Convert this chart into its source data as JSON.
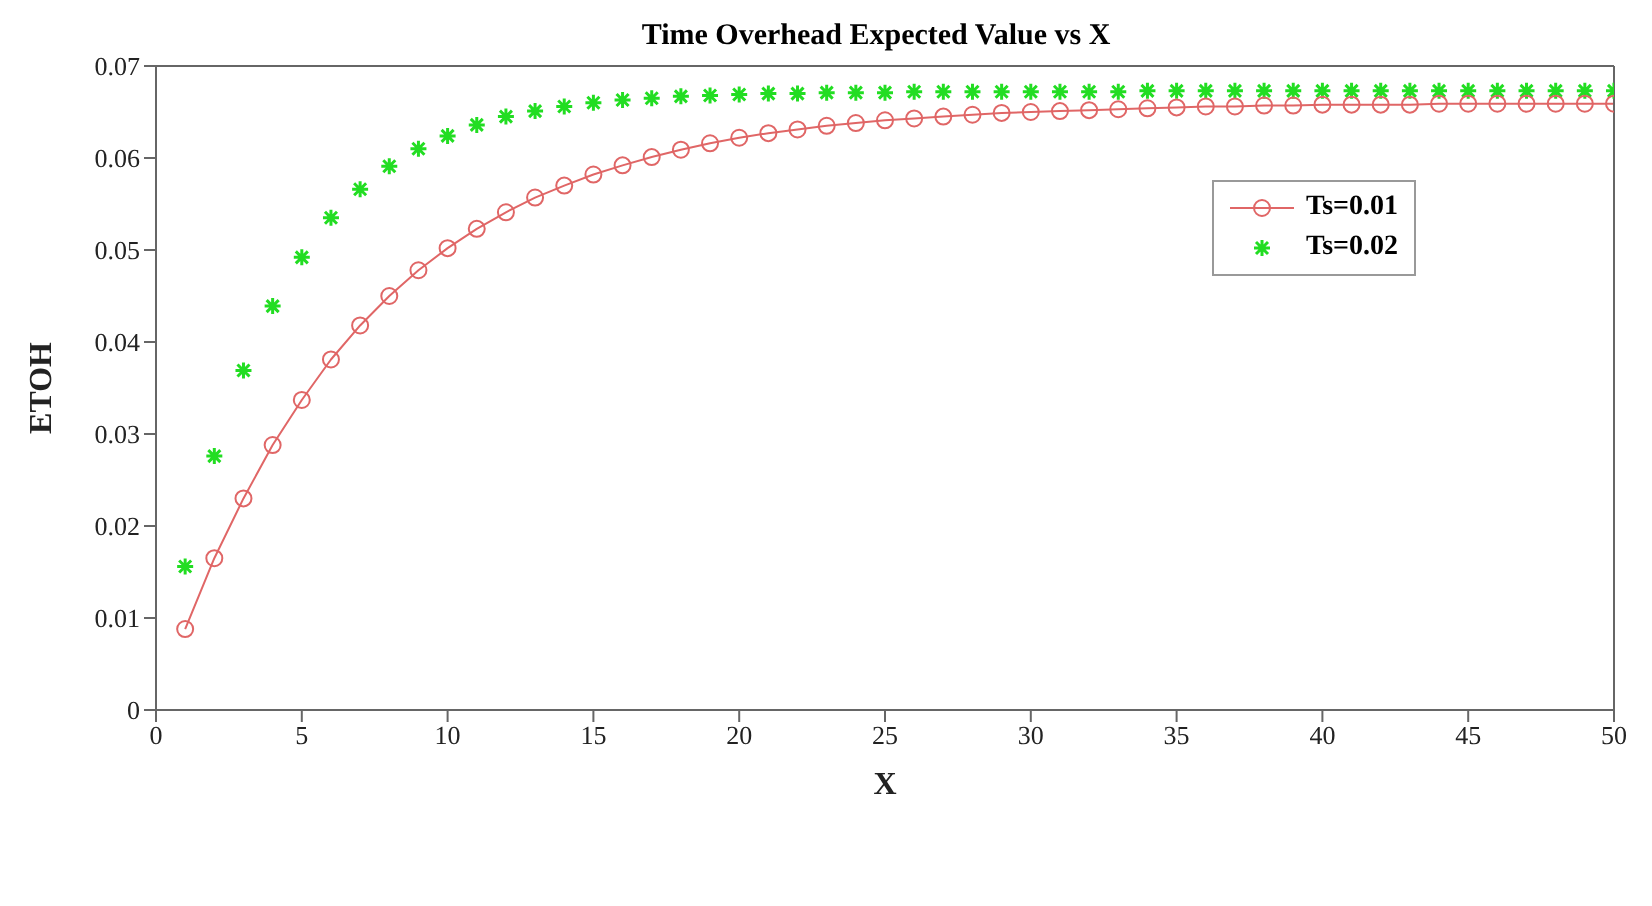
{
  "chart_data": {
    "type": "line",
    "title": "Time Overhead Expected Value vs X",
    "xlabel": "X",
    "ylabel": "ETOH",
    "x": [
      1,
      2,
      3,
      4,
      5,
      6,
      7,
      8,
      9,
      10,
      11,
      12,
      13,
      14,
      15,
      16,
      17,
      18,
      19,
      20,
      21,
      22,
      23,
      24,
      25,
      26,
      27,
      28,
      29,
      30,
      31,
      32,
      33,
      34,
      35,
      36,
      37,
      38,
      39,
      40,
      41,
      42,
      43,
      44,
      45,
      46,
      47,
      48,
      49,
      50
    ],
    "series": [
      {
        "name": "Ts=0.01",
        "marker": "circle",
        "color": "#e06666",
        "values": [
          0.0088,
          0.0165,
          0.023,
          0.0288,
          0.0337,
          0.0381,
          0.0418,
          0.045,
          0.0478,
          0.0502,
          0.0523,
          0.0541,
          0.0557,
          0.057,
          0.0582,
          0.0592,
          0.0601,
          0.0609,
          0.0616,
          0.0622,
          0.0627,
          0.0631,
          0.0635,
          0.0638,
          0.0641,
          0.0643,
          0.0645,
          0.0647,
          0.0649,
          0.065,
          0.0651,
          0.0652,
          0.0653,
          0.0654,
          0.0655,
          0.0656,
          0.0656,
          0.0657,
          0.0657,
          0.0658,
          0.0658,
          0.0658,
          0.0658,
          0.0659,
          0.0659,
          0.0659,
          0.0659,
          0.0659,
          0.0659,
          0.0659
        ]
      },
      {
        "name": "Ts=0.02",
        "type": "scatter",
        "marker": "cross",
        "color": "#22dd22",
        "values": [
          0.0156,
          0.0276,
          0.0369,
          0.0439,
          0.0492,
          0.0535,
          0.0566,
          0.0591,
          0.061,
          0.0624,
          0.0636,
          0.0645,
          0.0651,
          0.0656,
          0.066,
          0.0663,
          0.0665,
          0.0667,
          0.0668,
          0.0669,
          0.067,
          0.067,
          0.0671,
          0.0671,
          0.0671,
          0.0672,
          0.0672,
          0.0672,
          0.0672,
          0.0672,
          0.0672,
          0.0672,
          0.0672,
          0.0673,
          0.0673,
          0.0673,
          0.0673,
          0.0673,
          0.0673,
          0.0673,
          0.0673,
          0.0673,
          0.0673,
          0.0673,
          0.0673,
          0.0673,
          0.0673,
          0.0673,
          0.0673,
          0.0673
        ]
      }
    ],
    "xlim": [
      0,
      50
    ],
    "xticks": [
      0,
      5,
      10,
      15,
      20,
      25,
      30,
      35,
      40,
      45,
      50
    ],
    "ylim": [
      0,
      0.07
    ],
    "yticks": [
      0,
      0.01,
      0.02,
      0.03,
      0.04,
      0.05,
      0.06,
      0.07
    ],
    "grid": false,
    "legend": "top right"
  }
}
